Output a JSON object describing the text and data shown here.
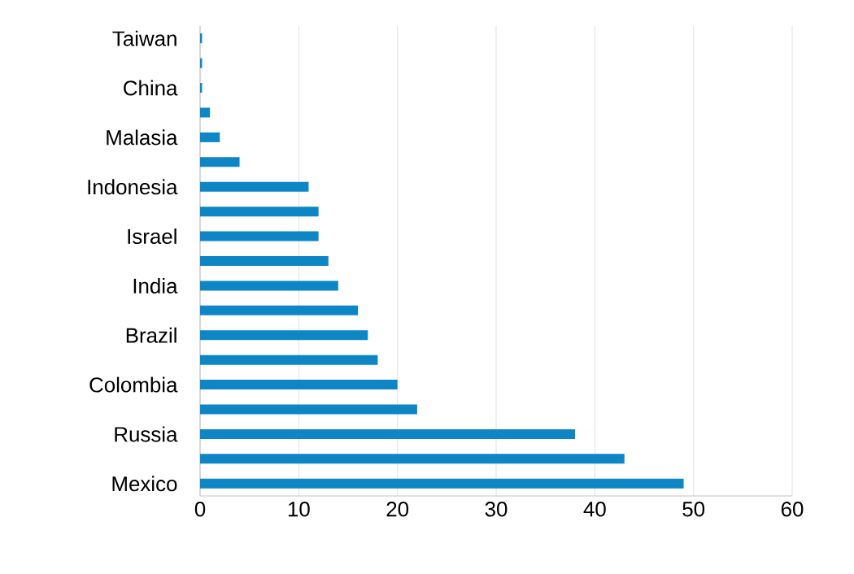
{
  "chart_data": {
    "type": "bar",
    "orientation": "horizontal",
    "categories": [
      "Taiwan",
      null,
      "China",
      null,
      "Malasia",
      null,
      "Indonesia",
      null,
      "Israel",
      null,
      "India",
      null,
      "Brazil",
      null,
      "Colombia",
      null,
      "Russia",
      null,
      "Mexico"
    ],
    "values": [
      0.2,
      0.2,
      0.2,
      1,
      2,
      4,
      11,
      12,
      12,
      13,
      14,
      16,
      17,
      18,
      20,
      22,
      38,
      43,
      49
    ],
    "color": "#0e86c6",
    "xlim": [
      0,
      60
    ],
    "xticks": [
      0,
      10,
      20,
      30,
      40,
      50,
      60
    ],
    "grid": "x"
  }
}
